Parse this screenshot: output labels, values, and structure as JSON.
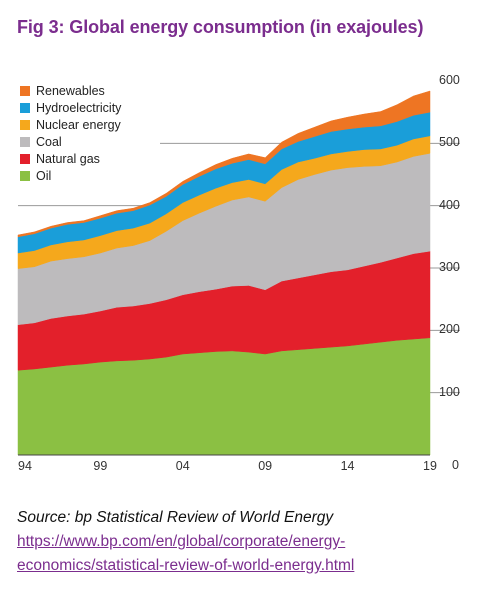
{
  "title": "Fig 3: Global energy consumption (in exajoules)",
  "source": {
    "prefix": "Source: bp Statistical Review of World Energy ",
    "link": "https://www.bp.com/en/global/corporate/energy-economics/statistical-review-of-world-energy.html"
  },
  "colors": {
    "title": "#7b2d8e",
    "Oil": "#8bc043",
    "Natural gas": "#e3202b",
    "Coal": "#bdbbbd",
    "Nuclear energy": "#f5a81c",
    "Hydroelectricity": "#1a9ed9",
    "Renewables": "#ee7523"
  },
  "chart_data": {
    "type": "area",
    "stacked": true,
    "title": "Fig 3: Global energy consumption (in exajoules)",
    "xlabel": "",
    "ylabel": "",
    "x": [
      1994,
      1995,
      1996,
      1997,
      1998,
      1999,
      2000,
      2001,
      2002,
      2003,
      2004,
      2005,
      2006,
      2007,
      2008,
      2009,
      2010,
      2011,
      2012,
      2013,
      2014,
      2015,
      2016,
      2017,
      2018,
      2019
    ],
    "x_tick_labels": [
      "94",
      "99",
      "04",
      "09",
      "14",
      "19"
    ],
    "x_tick_values": [
      1994,
      1999,
      2004,
      2009,
      2014,
      2019
    ],
    "y_tick_values": [
      0,
      100,
      200,
      300,
      400,
      500,
      600
    ],
    "y_tick_labels": [
      "0",
      "100",
      "200",
      "300",
      "400",
      "500",
      "600"
    ],
    "ylim": [
      0,
      600
    ],
    "legend_position": "top-left",
    "legend": [
      "Renewables",
      "Hydroelectricity",
      "Nuclear energy",
      "Coal",
      "Natural gas",
      "Oil"
    ],
    "grid": "partial horizontal lines at 100, 200, 300, 400, 500",
    "series": [
      {
        "name": "Oil",
        "values": [
          136,
          138,
          141,
          144,
          146,
          149,
          151,
          152,
          154,
          157,
          162,
          164,
          166,
          167,
          165,
          162,
          167,
          169,
          171,
          173,
          175,
          178,
          181,
          184,
          186,
          188
        ]
      },
      {
        "name": "Natural gas",
        "values": [
          73,
          74,
          78,
          79,
          80,
          82,
          86,
          87,
          89,
          92,
          95,
          98,
          100,
          104,
          107,
          103,
          112,
          115,
          118,
          121,
          122,
          125,
          128,
          132,
          137,
          139
        ]
      },
      {
        "name": "Coal",
        "values": [
          90,
          90,
          92,
          92,
          92,
          93,
          95,
          97,
          101,
          110,
          119,
          126,
          133,
          138,
          142,
          142,
          150,
          158,
          161,
          163,
          164,
          160,
          155,
          154,
          156,
          157
        ]
      },
      {
        "name": "Nuclear energy",
        "values": [
          25,
          26,
          26,
          27,
          27,
          28,
          28,
          28,
          28,
          28,
          29,
          29,
          29,
          28,
          28,
          28,
          29,
          28,
          26,
          26,
          26,
          27,
          27,
          27,
          28,
          28
        ]
      },
      {
        "name": "Hydroelectricity",
        "values": [
          26,
          27,
          27,
          28,
          28,
          28,
          28,
          28,
          29,
          28,
          29,
          30,
          31,
          31,
          32,
          32,
          33,
          33,
          35,
          36,
          36,
          36,
          37,
          38,
          38,
          38
        ]
      },
      {
        "name": "Renewables",
        "values": [
          3,
          3,
          3,
          3,
          3,
          4,
          4,
          4,
          4,
          5,
          5,
          6,
          7,
          8,
          9,
          10,
          11,
          13,
          15,
          17,
          19,
          21,
          23,
          27,
          31,
          34
        ]
      }
    ]
  }
}
